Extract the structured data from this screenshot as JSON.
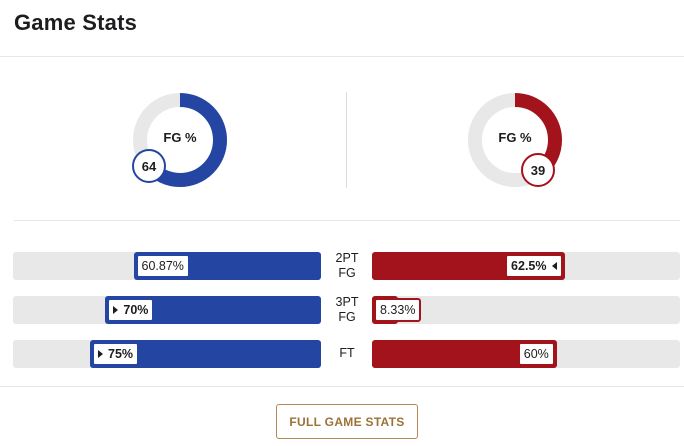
{
  "title": "Game Stats",
  "colors": {
    "home": "#2446a2",
    "away": "#a3131c",
    "track": "#e8e8e8",
    "button": "#9b7238"
  },
  "fg_pct": {
    "label": "FG %",
    "home": {
      "value": 64,
      "display": "64"
    },
    "away": {
      "value": 39,
      "display": "39"
    }
  },
  "stats": [
    {
      "label": "2PT FG",
      "home": {
        "value": 60.87,
        "display": "60.87%",
        "leader": false
      },
      "away": {
        "value": 62.5,
        "display": "62.5%",
        "leader": true
      }
    },
    {
      "label": "3PT FG",
      "home": {
        "value": 70,
        "display": "70%",
        "leader": true
      },
      "away": {
        "value": 8.33,
        "display": "8.33%",
        "leader": false
      }
    },
    {
      "label": "FT",
      "home": {
        "value": 75,
        "display": "75%",
        "leader": true
      },
      "away": {
        "value": 60,
        "display": "60%",
        "leader": false
      }
    }
  ],
  "button": {
    "label": "FULL GAME STATS"
  }
}
